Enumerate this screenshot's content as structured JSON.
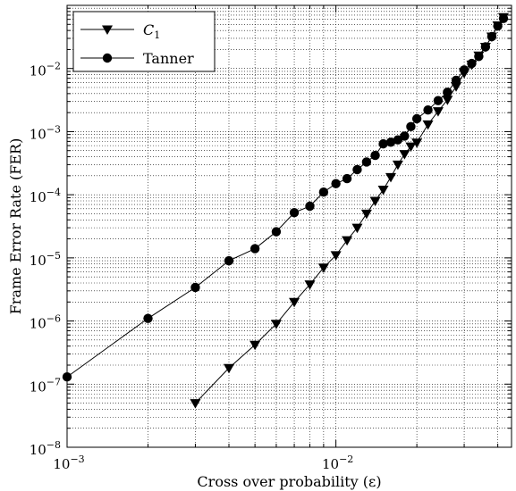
{
  "chart_data": {
    "type": "line",
    "xlabel": "Cross over probability (ε)",
    "ylabel": "Frame Error Rate (FER)",
    "x_scale": "log",
    "y_scale": "log",
    "xlim": [
      0.001,
      0.045
    ],
    "ylim": [
      1e-08,
      0.1
    ],
    "grid": true,
    "legend_position": "top-left",
    "x_ticks": [
      {
        "value": 0.001,
        "base": "10",
        "exp": "−3"
      },
      {
        "value": 0.01,
        "base": "10",
        "exp": "−2"
      }
    ],
    "y_ticks": [
      {
        "value": 1e-08,
        "base": "10",
        "exp": "−8"
      },
      {
        "value": 1e-07,
        "base": "10",
        "exp": "−7"
      },
      {
        "value": 1e-06,
        "base": "10",
        "exp": "−6"
      },
      {
        "value": 1e-05,
        "base": "10",
        "exp": "−5"
      },
      {
        "value": 0.0001,
        "base": "10",
        "exp": "−4"
      },
      {
        "value": 0.001,
        "base": "10",
        "exp": "−3"
      },
      {
        "value": 0.01,
        "base": "10",
        "exp": "−2"
      }
    ],
    "series": [
      {
        "name": "C",
        "name_subscript": "1",
        "marker": "triangle-down",
        "x": [
          0.003,
          0.004,
          0.005,
          0.006,
          0.007,
          0.008,
          0.009,
          0.01,
          0.011,
          0.012,
          0.013,
          0.014,
          0.015,
          0.016,
          0.017,
          0.018,
          0.019,
          0.02,
          0.022,
          0.024,
          0.026,
          0.028,
          0.03,
          0.032,
          0.034,
          0.036,
          0.038,
          0.04,
          0.042
        ],
        "y": [
          5e-08,
          1.8e-07,
          4.2e-07,
          9e-07,
          2e-06,
          3.8e-06,
          7e-06,
          1.1e-05,
          1.9e-05,
          3e-05,
          5e-05,
          8e-05,
          0.00012,
          0.00019,
          0.0003,
          0.00044,
          0.00058,
          0.00067,
          0.0013,
          0.0021,
          0.0032,
          0.0052,
          0.0085,
          0.0115,
          0.016,
          0.022,
          0.032,
          0.048,
          0.065
        ]
      },
      {
        "name": "Tanner",
        "marker": "circle",
        "x": [
          0.001,
          0.002,
          0.003,
          0.004,
          0.005,
          0.006,
          0.007,
          0.008,
          0.009,
          0.01,
          0.011,
          0.012,
          0.013,
          0.014,
          0.015,
          0.016,
          0.017,
          0.018,
          0.019,
          0.02,
          0.022,
          0.024,
          0.026,
          0.028,
          0.03,
          0.032,
          0.034,
          0.036,
          0.038,
          0.04,
          0.042
        ],
        "y": [
          1.3e-07,
          1.1e-06,
          3.4e-06,
          9e-06,
          1.4e-05,
          2.6e-05,
          5.2e-05,
          6.6e-05,
          0.00011,
          0.00015,
          0.00018,
          0.00025,
          0.00033,
          0.00042,
          0.00064,
          0.00068,
          0.00074,
          0.00085,
          0.0012,
          0.0016,
          0.0022,
          0.0031,
          0.0042,
          0.0065,
          0.0095,
          0.012,
          0.0155,
          0.022,
          0.032,
          0.047,
          0.062
        ]
      }
    ]
  }
}
